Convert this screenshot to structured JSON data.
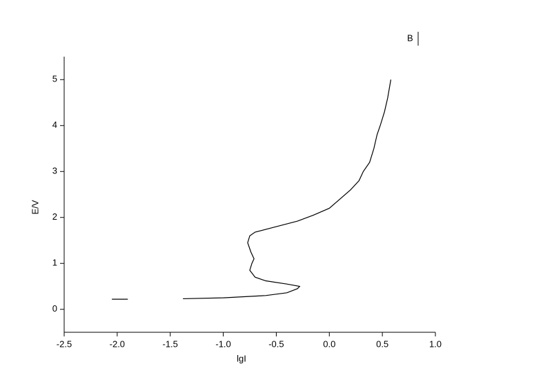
{
  "chart_data": {
    "type": "line",
    "x_label": "lgI",
    "y_label": "E/V",
    "x": [
      -2.05,
      -1.9,
      null,
      -1.38,
      -1.0,
      -0.6,
      -0.4,
      -0.3,
      -0.28,
      -0.4,
      -0.6,
      -0.7,
      -0.75,
      -0.73,
      -0.71,
      -0.74,
      -0.77,
      -0.75,
      -0.7,
      -0.5,
      -0.3,
      -0.15,
      0.0,
      0.1,
      0.2,
      0.28,
      0.32,
      0.38,
      0.42,
      0.45,
      0.48,
      0.52,
      0.55,
      0.58
    ],
    "series": [
      {
        "name": "B",
        "color": "#000000",
        "values": [
          0.22,
          0.22,
          null,
          0.23,
          0.25,
          0.3,
          0.36,
          0.45,
          0.5,
          0.55,
          0.62,
          0.7,
          0.85,
          1.0,
          1.1,
          1.25,
          1.45,
          1.6,
          1.68,
          1.8,
          1.92,
          2.05,
          2.2,
          2.4,
          2.6,
          2.8,
          3.0,
          3.2,
          3.5,
          3.8,
          4.0,
          4.3,
          4.6,
          5.0
        ]
      }
    ],
    "xlim": [
      -2.5,
      1.0
    ],
    "xticks": [
      -2.5,
      {
        "value": -2.0,
        "label": "-2.0"
      },
      -1.5,
      {
        "value": -1.0,
        "label": "-1.0"
      },
      -0.5,
      {
        "value": 0.0,
        "label": "0.0"
      },
      0.5,
      {
        "value": 1.0,
        "label": "1.0"
      }
    ],
    "ylim": [
      -0.5,
      5.5
    ],
    "yticks": [
      0,
      1,
      2,
      3,
      4,
      5
    ],
    "grid": false
  }
}
